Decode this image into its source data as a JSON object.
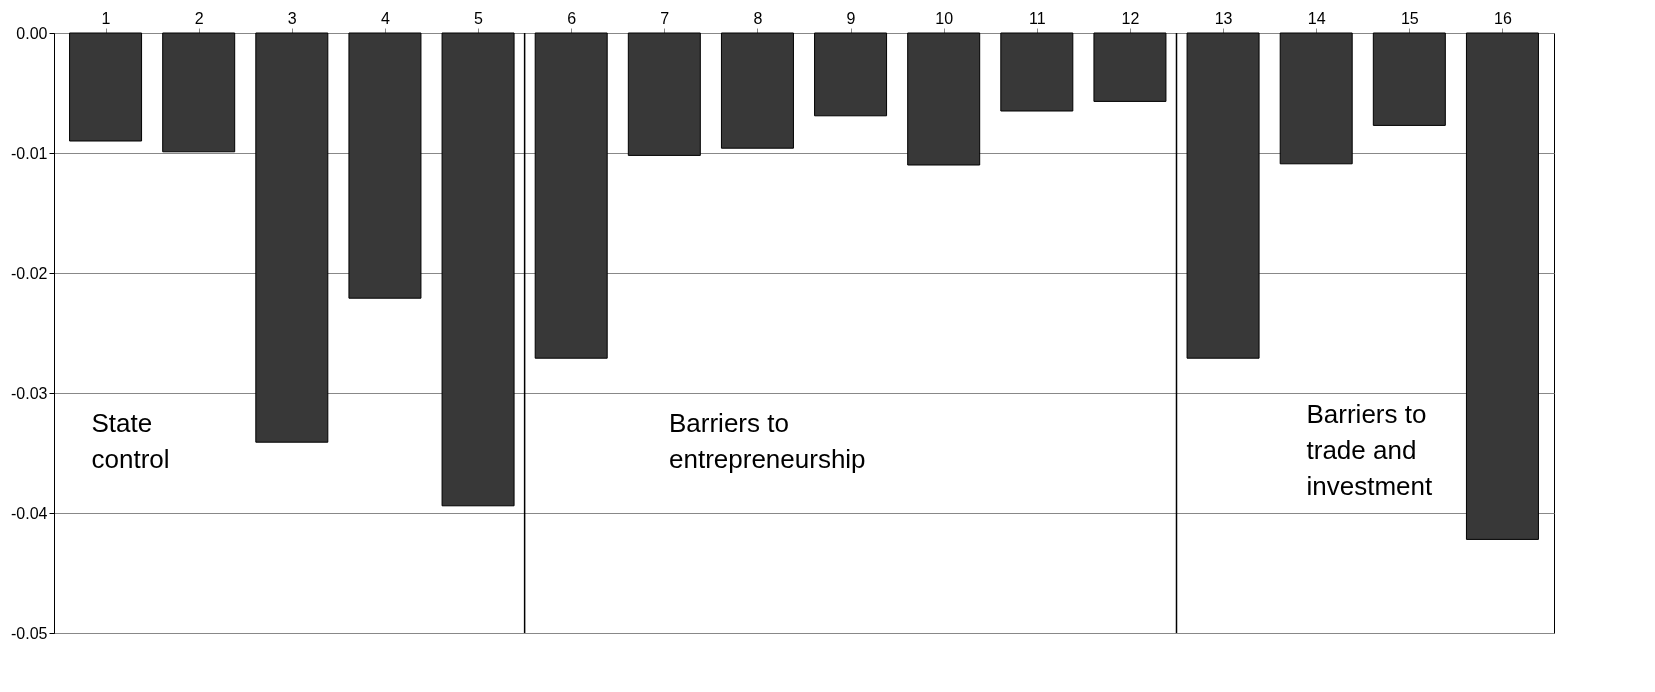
{
  "chart_data": {
    "type": "bar",
    "x": [
      1,
      2,
      3,
      4,
      5,
      6,
      7,
      8,
      9,
      10,
      11,
      12,
      13,
      14,
      15,
      16
    ],
    "values": [
      -0.009,
      -0.0099,
      -0.0341,
      -0.0221,
      -0.0394,
      -0.0271,
      -0.0102,
      -0.0096,
      -0.0069,
      -0.011,
      -0.0065,
      -0.0057,
      -0.0271,
      -0.0109,
      -0.0077,
      -0.0422
    ],
    "color": "#383838",
    "xlim": [
      0.5,
      16.5
    ],
    "xticks": [
      1,
      2,
      3,
      4,
      5,
      6,
      7,
      8,
      9,
      10,
      11,
      12,
      13,
      14,
      15,
      16
    ],
    "ylim": [
      -0.05,
      0
    ],
    "yticks": [
      {
        "value": -0.05,
        "label": "-0.05"
      },
      {
        "value": -0.04,
        "label": "-0.04"
      },
      {
        "value": -0.03,
        "label": "-0.03"
      },
      {
        "value": -0.02,
        "label": "-0.02"
      },
      {
        "value": -0.01,
        "label": "-0.01"
      },
      {
        "value": 0,
        "label": "0.00"
      }
    ],
    "grid": "y",
    "ref_lines": [
      {
        "axis": "x",
        "value": 5.5,
        "color": "#000000"
      },
      {
        "axis": "x",
        "value": 12.5,
        "color": "#000000"
      }
    ],
    "annotations": [
      "State control",
      "Barriers to entrepreneurship",
      "Barriers to trade and investment"
    ]
  }
}
